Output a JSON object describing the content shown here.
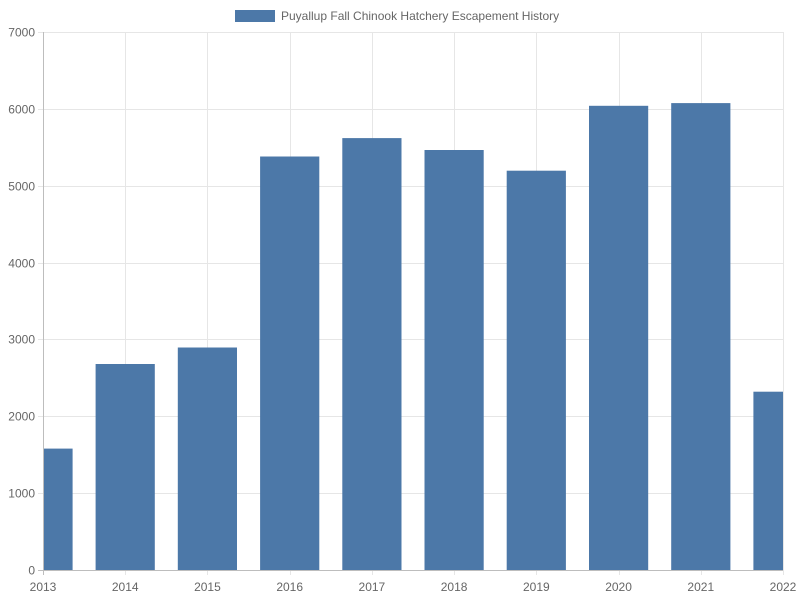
{
  "chart_data": {
    "type": "bar",
    "title": "",
    "xlabel": "",
    "ylabel": "",
    "legend_position": "top-center",
    "categories": [
      "2013",
      "2014",
      "2015",
      "2016",
      "2017",
      "2018",
      "2019",
      "2020",
      "2021",
      "2022"
    ],
    "series": [
      {
        "name": "Puyallup Fall Chinook Hatchery Escapement History",
        "color": "#4c78a8",
        "values": [
          1580,
          2680,
          2895,
          5380,
          5620,
          5465,
          5195,
          6040,
          6075,
          2320
        ]
      }
    ],
    "ylim": [
      0,
      7000
    ],
    "yticks": [
      "0",
      "1000",
      "2000",
      "3000",
      "4000",
      "5000",
      "6000",
      "7000"
    ],
    "xticks": [
      "2013",
      "2014",
      "2015",
      "2016",
      "2017",
      "2018",
      "2019",
      "2020",
      "2021",
      "2022"
    ],
    "grid": true
  }
}
